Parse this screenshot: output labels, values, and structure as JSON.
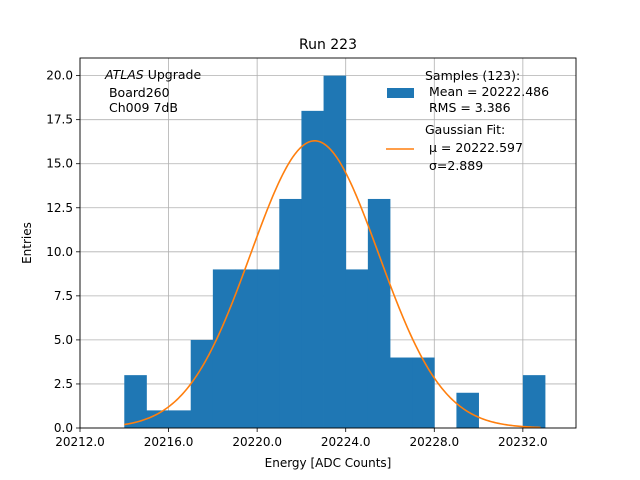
{
  "chart_data": {
    "type": "bar",
    "title": "Run 223",
    "xlabel": "Energy [ADC Counts]",
    "ylabel": "Entries",
    "xlim": [
      20212.0,
      20234.4
    ],
    "ylim": [
      0,
      21
    ],
    "grid": true,
    "xticks": [
      "20212.0",
      "20216.0",
      "20220.0",
      "20224.0",
      "20228.0",
      "20232.0"
    ],
    "yticks": [
      "0.0",
      "2.5",
      "5.0",
      "7.5",
      "10.0",
      "12.5",
      "15.0",
      "17.5",
      "20.0"
    ],
    "bins": [
      {
        "x0": 20214.0,
        "x1": 20215.0,
        "count": 3
      },
      {
        "x0": 20215.0,
        "x1": 20216.0,
        "count": 1
      },
      {
        "x0": 20216.0,
        "x1": 20217.0,
        "count": 1
      },
      {
        "x0": 20217.0,
        "x1": 20218.0,
        "count": 5
      },
      {
        "x0": 20218.0,
        "x1": 20219.0,
        "count": 9
      },
      {
        "x0": 20219.0,
        "x1": 20220.0,
        "count": 9
      },
      {
        "x0": 20220.0,
        "x1": 20221.0,
        "count": 9
      },
      {
        "x0": 20221.0,
        "x1": 20222.0,
        "count": 13
      },
      {
        "x0": 20222.0,
        "x1": 20223.0,
        "count": 18
      },
      {
        "x0": 20223.0,
        "x1": 20224.0,
        "count": 20
      },
      {
        "x0": 20224.0,
        "x1": 20225.0,
        "count": 9
      },
      {
        "x0": 20225.0,
        "x1": 20226.0,
        "count": 13
      },
      {
        "x0": 20226.0,
        "x1": 20227.0,
        "count": 4
      },
      {
        "x0": 20227.0,
        "x1": 20228.0,
        "count": 4
      },
      {
        "x0": 20229.0,
        "x1": 20230.0,
        "count": 2
      },
      {
        "x0": 20232.0,
        "x1": 20233.0,
        "count": 3
      }
    ],
    "fit": {
      "mu": 20222.597,
      "sigma": 2.889,
      "amplitude": 16.3,
      "x_range": [
        20214.0,
        20232.8
      ]
    },
    "annotation": {
      "italic": "ATLAS",
      "line1_rest": " Upgrade",
      "line2": " Board260",
      "line3": " Ch009 7dB"
    },
    "legend": {
      "position": "top-right",
      "hist_lines": [
        "Samples (123):",
        " Mean = 20222.486",
        " RMS = 3.386"
      ],
      "fit_lines": [
        "Gaussian Fit:",
        " μ = 20222.597",
        " σ=2.889"
      ]
    },
    "colors": {
      "hist": "#1f77b4",
      "fit": "#ff7f0e",
      "grid": "#b0b0b0"
    }
  }
}
